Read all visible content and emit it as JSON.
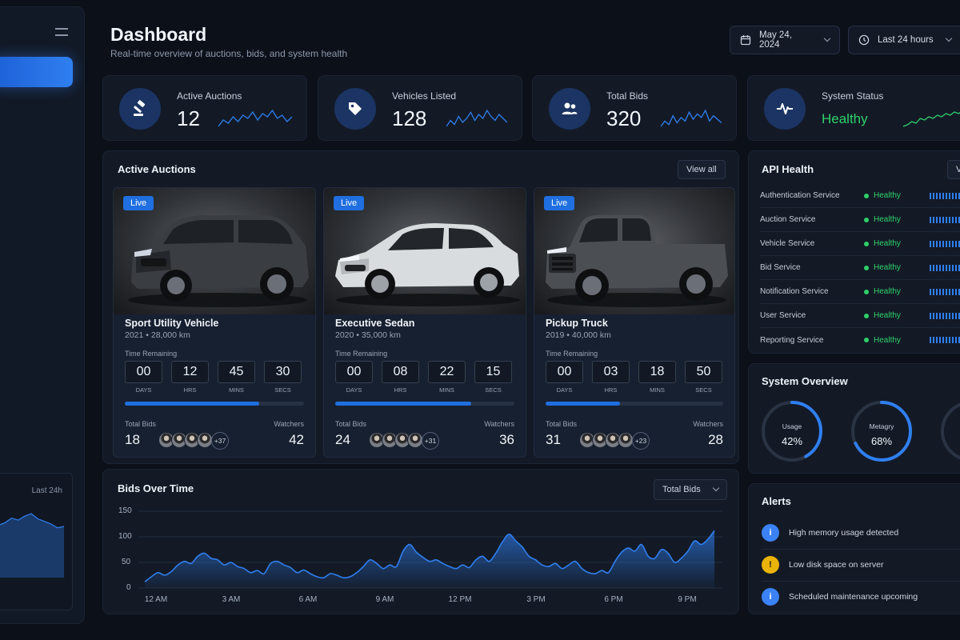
{
  "header": {
    "title": "Dashboard",
    "subtitle": "Real-time overview of auctions, bids, and system health",
    "date_label": "May 24, 2024",
    "range_label": "Last 24 hours"
  },
  "sidebar": {
    "chart_label": "Last 24h",
    "sparkline": [
      40,
      44,
      48,
      55,
      52,
      58,
      62,
      54,
      50,
      46,
      40,
      42
    ]
  },
  "stats": [
    {
      "label": "Active Auctions",
      "value": "12",
      "icon": "gavel-icon",
      "spark": [
        10,
        14,
        12,
        16,
        13,
        17,
        15,
        19,
        14,
        18,
        16,
        20,
        15,
        17,
        13,
        16
      ]
    },
    {
      "label": "Vehicles Listed",
      "value": "128",
      "icon": "tag-icon",
      "spark": [
        8,
        11,
        9,
        13,
        10,
        12,
        15,
        11,
        14,
        12,
        16,
        13,
        11,
        14,
        12,
        10
      ]
    },
    {
      "label": "Total Bids",
      "value": "320",
      "icon": "users-icon",
      "spark": [
        9,
        12,
        10,
        15,
        11,
        14,
        12,
        17,
        13,
        16,
        14,
        18,
        12,
        15,
        13,
        11
      ]
    },
    {
      "label": "System Status",
      "value": "Healthy",
      "icon": "pulse-icon",
      "spark": [
        8,
        9,
        11,
        10,
        13,
        12,
        14,
        13,
        15,
        14,
        16,
        15,
        17,
        16,
        18,
        17
      ]
    }
  ],
  "auctions": {
    "title": "Active Auctions",
    "view_all": "View all",
    "time_remaining_label": "Time Remaining",
    "total_bids_label": "Total Bids",
    "watchers_label": "Watchers",
    "units": [
      "DAYS",
      "HRS",
      "MINS",
      "SECS"
    ],
    "items": [
      {
        "badge": "Live",
        "name": "Sport Utility Vehicle",
        "year": "2021",
        "km": "28,000 km",
        "time": [
          "00",
          "12",
          "45",
          "30"
        ],
        "progress": 0.75,
        "bids": "18",
        "more": "+37",
        "watchers": "42"
      },
      {
        "badge": "Live",
        "name": "Executive Sedan",
        "year": "2020",
        "km": "35,000 km",
        "time": [
          "00",
          "08",
          "22",
          "15"
        ],
        "progress": 0.76,
        "bids": "24",
        "more": "+31",
        "watchers": "36"
      },
      {
        "badge": "Live",
        "name": "Pickup Truck",
        "year": "2019",
        "km": "40,000 km",
        "time": [
          "00",
          "03",
          "18",
          "50"
        ],
        "progress": 0.42,
        "bids": "31",
        "more": "+23",
        "watchers": "28"
      }
    ]
  },
  "api_health": {
    "title": "API Health",
    "services": [
      {
        "name": "Authentication Service",
        "status": "Healthy"
      },
      {
        "name": "Auction Service",
        "status": "Healthy"
      },
      {
        "name": "Vehicle Service",
        "status": "Healthy"
      },
      {
        "name": "Bid Service",
        "status": "Healthy"
      },
      {
        "name": "Notification Service",
        "status": "Healthy"
      },
      {
        "name": "User Service",
        "status": "Healthy"
      },
      {
        "name": "Reporting Service",
        "status": "Healthy"
      }
    ]
  },
  "system_overview": {
    "title": "System Overview",
    "gauges": [
      {
        "label": "Usage",
        "value": "42%",
        "fraction": 0.42
      },
      {
        "label": "Metagry",
        "value": "68%",
        "fraction": 0.68
      }
    ]
  },
  "alerts": {
    "title": "Alerts",
    "items": [
      {
        "text": "High memory usage detected",
        "kind": "info",
        "color": "#3b82f6",
        "glyph": "i"
      },
      {
        "text": "Low disk space on server",
        "kind": "warning",
        "color": "#eab308",
        "glyph": "!"
      },
      {
        "text": "Scheduled maintenance upcoming",
        "kind": "info",
        "color": "#3b82f6",
        "glyph": "i"
      }
    ]
  },
  "chart_data": {
    "type": "area",
    "title": "Bids Over Time",
    "selector": "Total Bids",
    "ylim": [
      0,
      150
    ],
    "yticks": [
      150,
      100,
      50,
      0
    ],
    "xticks": [
      "12 AM",
      "3 AM",
      "6 AM",
      "9 AM",
      "12 PM",
      "3 PM",
      "6 PM",
      "9 PM"
    ],
    "series": [
      {
        "values": [
          12,
          22,
          30,
          25,
          32,
          45,
          52,
          48,
          62,
          68,
          58,
          55,
          45,
          50,
          42,
          38,
          30,
          34,
          28,
          48,
          52,
          45,
          40,
          30,
          35,
          28,
          22,
          20,
          28,
          25,
          20,
          22,
          30,
          42,
          55,
          48,
          38,
          45,
          42,
          72,
          85,
          70,
          60,
          52,
          55,
          48,
          42,
          38,
          45,
          40,
          55,
          62,
          52,
          68,
          90,
          105,
          92,
          80,
          62,
          55,
          45,
          42,
          48,
          38,
          45,
          52,
          38,
          30,
          28,
          34,
          30,
          52,
          70,
          78,
          72,
          85,
          62,
          58,
          75,
          68,
          50,
          58,
          72,
          92,
          85,
          95,
          112
        ],
        "x_start": "12 AM",
        "x_end": "11 PM"
      }
    ],
    "color": "#2f7ff0"
  },
  "colors": {
    "accent": "#2f7ff0",
    "healthy": "#2fd06a",
    "background": "#0b1019",
    "panel": "#131a26"
  }
}
